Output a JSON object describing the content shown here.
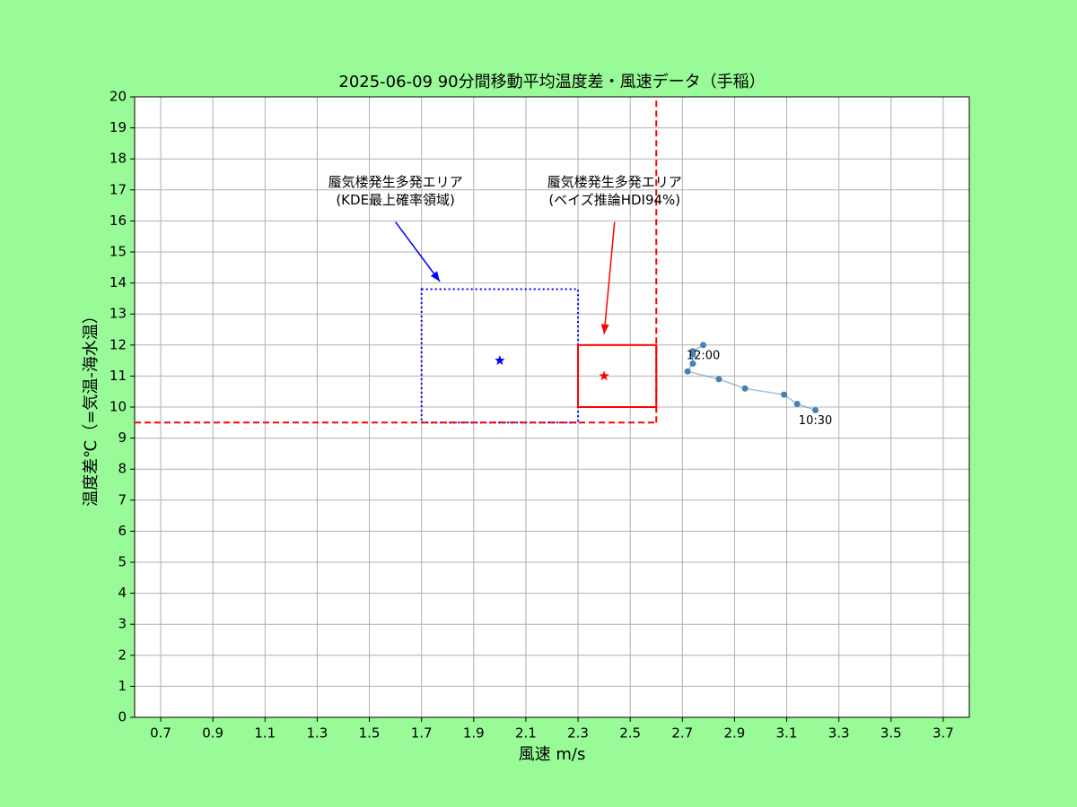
{
  "chart_data": {
    "type": "scatter",
    "title": "2025-06-09  90分間移動平均温度差・風速データ（手稲）",
    "x_label": "風速 m/s",
    "y_label": "温度差℃（=気温-海水温）",
    "xlim": [
      0.6,
      3.8
    ],
    "ylim": [
      0,
      20
    ],
    "xticks": [
      0.7,
      0.9,
      1.1,
      1.3,
      1.5,
      1.7,
      1.9,
      2.1,
      2.3,
      2.5,
      2.7,
      2.9,
      3.1,
      3.3,
      3.5,
      3.7
    ],
    "yticks": [
      0,
      1,
      2,
      3,
      4,
      5,
      6,
      7,
      8,
      9,
      10,
      11,
      12,
      13,
      14,
      15,
      16,
      17,
      18,
      19,
      20
    ],
    "grid": true,
    "series": [
      {
        "color": "#4682b4",
        "x": [
          3.21,
          3.14,
          3.09,
          2.94,
          2.84,
          2.72,
          2.74,
          2.74,
          2.74,
          2.78
        ],
        "values": [
          9.9,
          10.1,
          10.4,
          10.6,
          10.9,
          11.15,
          11.4,
          11.7,
          11.8,
          12.0
        ],
        "labels": [
          "10:30",
          null,
          null,
          null,
          null,
          null,
          null,
          null,
          null,
          "12:00"
        ]
      }
    ],
    "threshold": {
      "x": 2.6,
      "y": 9.5,
      "color": "#ff0000"
    },
    "regions": [
      {
        "x": [
          1.7,
          2.3
        ],
        "y": [
          9.5,
          13.8
        ],
        "color": "#0000ff",
        "style": "dotted"
      },
      {
        "x": [
          2.3,
          2.6
        ],
        "y": [
          10,
          12
        ],
        "color": "#ff0000",
        "style": "solid"
      }
    ],
    "centers": [
      {
        "x": 2.0,
        "y": 11.5,
        "color": "#0000ff"
      },
      {
        "x": 2.4,
        "y": 11.0,
        "color": "#ff0000"
      }
    ],
    "annotations": [
      {
        "text": [
          "蜃気楼発生多発エリア",
          "(KDE最上確率領域)"
        ],
        "color": "#0000ff",
        "xy": [
          1.77,
          14.05
        ],
        "xytext": [
          1.6,
          16.95
        ]
      },
      {
        "text": [
          "蜃気楼発生多発エリア",
          "(ベイズ推論HDI94%)"
        ],
        "color": "#ff0000",
        "xy": [
          2.4,
          12.35
        ],
        "xytext": [
          2.44,
          16.95
        ]
      }
    ]
  }
}
